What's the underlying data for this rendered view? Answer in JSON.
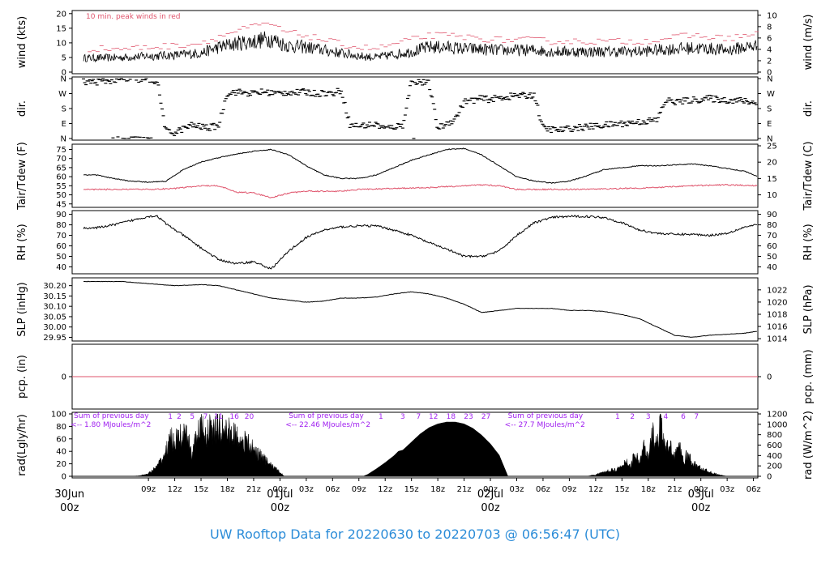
{
  "colors": {
    "red": "#df536b",
    "purple": "#a020f0",
    "title": "#2b8cd8",
    "black": "#000000"
  },
  "title": "UW Rooftop Data for 20220630  to  20220703 @ 06:56:47  (UTC)",
  "chart_data": [
    {
      "type": "line",
      "panel": "wind",
      "ylabel_left": "wind (kts)",
      "ylabel_right": "wind (m/s)",
      "ylim": [
        0,
        20.5
      ],
      "yticks_left": [
        0,
        5,
        10,
        15,
        20
      ],
      "yticks_right": [
        0,
        2,
        4,
        6,
        8,
        10
      ],
      "right_scale": 0.514444,
      "annotation": "10 min. peak winds in red",
      "series": [
        {
          "name": "wind",
          "x_hours": [
            0,
            3,
            6,
            9,
            12,
            14,
            16,
            18,
            20,
            21,
            22,
            24,
            26,
            28,
            30,
            32,
            34,
            36,
            38,
            40,
            42,
            44,
            46,
            48,
            50,
            52,
            54,
            56,
            58,
            60,
            62,
            64,
            66,
            68,
            70,
            72,
            74,
            75.5
          ],
          "values": [
            4.8,
            5,
            5.5,
            5.8,
            6.5,
            8.5,
            9.8,
            10.5,
            11.5,
            10,
            9,
            8.5,
            7.5,
            6.5,
            5.5,
            5,
            6,
            7,
            8.5,
            8.5,
            8,
            7.8,
            7.5,
            7.5,
            7.5,
            7,
            7,
            7,
            7,
            7,
            7,
            7.5,
            8,
            8.2,
            8,
            7.5,
            8.5,
            9
          ]
        },
        {
          "name": "10 min. peak winds",
          "x_hours": [
            0,
            3,
            6,
            9,
            12,
            14,
            16,
            18,
            20,
            21,
            22,
            24,
            26,
            28,
            30,
            32,
            34,
            36,
            38,
            40,
            42,
            44,
            46,
            48,
            50,
            52,
            54,
            56,
            58,
            60,
            62,
            64,
            66,
            68,
            70,
            72,
            74,
            75.5
          ],
          "values": [
            8,
            8,
            8.5,
            9,
            10,
            12,
            14,
            15.5,
            16.5,
            14.5,
            13.5,
            12.5,
            11,
            9.5,
            8.5,
            8,
            9.5,
            11,
            12.5,
            12.5,
            12,
            11.5,
            11,
            11,
            11,
            10.5,
            10.5,
            10.5,
            10.5,
            10.5,
            10.5,
            11,
            12,
            12.5,
            12,
            11.5,
            12.5,
            13
          ]
        }
      ]
    },
    {
      "type": "scatter",
      "panel": "dir",
      "ylabel_left": "dir.",
      "ylabel_right": "dir.",
      "yticks": [
        "N",
        "W",
        "S",
        "E",
        "N"
      ],
      "yticks_deg": [
        360,
        270,
        180,
        90,
        0
      ],
      "ylim": [
        0,
        360
      ],
      "series": [
        {
          "name": "wind direction (deg)",
          "x_hours": [
            0,
            1,
            2,
            3,
            4,
            5,
            6,
            7,
            8,
            9,
            10,
            11,
            12,
            13,
            14,
            15,
            16,
            17,
            18,
            19,
            20,
            21,
            22,
            23,
            24,
            25,
            26,
            27,
            28,
            29,
            30,
            31,
            32,
            33,
            34,
            35,
            36,
            37,
            38,
            39,
            40,
            41,
            42,
            43,
            44,
            45,
            46,
            47,
            48,
            49,
            50,
            51,
            52,
            53,
            54,
            55,
            56,
            57,
            58,
            59,
            60,
            61,
            62,
            63,
            64,
            65,
            66,
            67,
            68,
            69,
            70,
            71,
            72,
            73,
            74,
            75
          ],
          "values": [
            340,
            345,
            350,
            350,
            355,
            355,
            350,
            345,
            40,
            35,
            60,
            80,
            70,
            65,
            80,
            275,
            280,
            275,
            270,
            280,
            275,
            270,
            280,
            275,
            280,
            270,
            275,
            270,
            290,
            80,
            75,
            80,
            85,
            60,
            70,
            80,
            350,
            340,
            330,
            60,
            90,
            120,
            220,
            230,
            240,
            235,
            245,
            250,
            260,
            255,
            265,
            60,
            55,
            50,
            60,
            65,
            70,
            75,
            80,
            85,
            90,
            95,
            100,
            105,
            110,
            230,
            220,
            225,
            230,
            235,
            240,
            235,
            230,
            230,
            225,
            215
          ]
        }
      ]
    },
    {
      "type": "line",
      "panel": "temp",
      "ylabel_left": "Tair/Tdew (F)",
      "ylabel_right": "Tair/Tdew (C)",
      "ylim": [
        44,
        77
      ],
      "yticks_left": [
        45,
        50,
        55,
        60,
        65,
        70,
        75
      ],
      "yticks_right": [
        10,
        15,
        20,
        25
      ],
      "series": [
        {
          "name": "Tair",
          "x_hours": [
            0,
            2,
            4,
            6,
            8,
            10,
            12,
            14,
            16,
            18,
            20,
            22,
            24,
            26,
            28,
            30,
            32,
            34,
            36,
            38,
            40,
            42,
            44,
            46,
            48,
            50,
            52,
            54,
            56,
            58,
            60,
            62,
            64,
            66,
            68,
            70,
            72,
            74,
            75.5
          ],
          "values": [
            61,
            59,
            57.5,
            57,
            57.5,
            64,
            68,
            70.5,
            72.5,
            74,
            75,
            72,
            66,
            61,
            59,
            59,
            61,
            65,
            69,
            72,
            75,
            75.5,
            72,
            66,
            60,
            57.5,
            56.5,
            57.5,
            60.5,
            64,
            65,
            66,
            66,
            66.5,
            67,
            66,
            64.5,
            63,
            60
          ]
        },
        {
          "name": "Tdew",
          "x_hours": [
            0,
            3,
            6,
            9,
            12,
            14,
            16,
            18,
            20,
            22,
            24,
            26,
            28,
            30,
            34,
            38,
            42,
            44,
            46,
            48,
            52,
            56,
            60,
            64,
            68,
            72,
            75.5
          ],
          "values": [
            53,
            53,
            53,
            53.5,
            55,
            55,
            51.5,
            51,
            48.5,
            51,
            52,
            52,
            52,
            53,
            53.5,
            54,
            55,
            55.5,
            55,
            53,
            53,
            53,
            53.5,
            54,
            55,
            55.5,
            55
          ]
        }
      ]
    },
    {
      "type": "line",
      "panel": "rh",
      "ylabel_left": "RH (%)",
      "ylabel_right": "RH (%)",
      "ylim": [
        35,
        92
      ],
      "yticks": [
        40,
        50,
        60,
        70,
        80,
        90
      ],
      "series": [
        {
          "name": "RH",
          "x_hours": [
            0,
            2,
            4,
            6,
            7,
            8,
            10,
            12,
            14,
            16,
            18,
            20,
            22,
            24,
            26,
            28,
            30,
            32,
            34,
            36,
            38,
            40,
            42,
            44,
            46,
            48,
            50,
            52,
            54,
            56,
            58,
            60,
            62,
            64,
            66,
            68,
            70,
            72,
            74,
            75.5
          ],
          "values": [
            77,
            80,
            84,
            88,
            88.5,
            81,
            70,
            58,
            47,
            43,
            45,
            38,
            55,
            68,
            75,
            78,
            79,
            79,
            75,
            70,
            63,
            57,
            50,
            50,
            55,
            70,
            82,
            87,
            88,
            88,
            87,
            82,
            75,
            72,
            71,
            71,
            70,
            72,
            78,
            80
          ]
        }
      ]
    },
    {
      "type": "line",
      "panel": "slp",
      "ylabel_left": "SLP (inHg)",
      "ylabel_right": "SLP (hPa)",
      "ylim": [
        29.94,
        30.23
      ],
      "yticks_left": [
        29.95,
        30.0,
        30.05,
        30.1,
        30.15,
        30.2
      ],
      "yticks_left_labels": [
        "29.95",
        "30.00",
        "30.05",
        "30.10",
        "30.15",
        "30.20"
      ],
      "yticks_right": [
        1014,
        1016,
        1018,
        1020,
        1022
      ],
      "series": [
        {
          "name": "SLP",
          "x_hours": [
            0,
            3,
            6,
            9,
            12,
            14,
            16,
            18,
            20,
            22,
            24,
            26,
            28,
            30,
            32,
            34,
            36,
            38,
            40,
            42,
            44,
            46,
            48,
            50,
            52,
            54,
            56,
            58,
            60,
            62,
            64,
            66,
            68,
            70,
            72,
            74,
            75.5
          ],
          "values": [
            30.22,
            30.22,
            30.21,
            30.2,
            30.205,
            30.2,
            30.18,
            30.16,
            30.14,
            30.13,
            30.12,
            30.125,
            30.14,
            30.14,
            30.145,
            30.16,
            30.17,
            30.16,
            30.14,
            30.11,
            30.07,
            30.08,
            30.09,
            30.09,
            30.09,
            30.08,
            30.08,
            30.075,
            30.06,
            30.04,
            30.0,
            29.96,
            29.95,
            29.96,
            29.965,
            29.97,
            29.98
          ]
        }
      ]
    },
    {
      "type": "line",
      "panel": "pcp",
      "ylabel_left": "pcp. (in)",
      "ylabel_right": "pcp. (mm)",
      "yticks_left": [
        0
      ],
      "yticks_right": [
        0
      ],
      "series": [
        {
          "name": "precipitation",
          "x_hours": [
            0,
            75.5
          ],
          "values": [
            0,
            0
          ]
        }
      ]
    },
    {
      "type": "area",
      "panel": "rad",
      "ylabel_left": "rad(Lgly/hr)",
      "ylabel_right": "rad (W/m^2)",
      "ylim": [
        0,
        100
      ],
      "yticks_left": [
        0,
        20,
        40,
        60,
        80,
        100
      ],
      "yticks_right": [
        0,
        200,
        400,
        600,
        800,
        1000,
        1200
      ],
      "annotations": [
        {
          "text": "Sum of previous day",
          "x_hours": -2.5
        },
        {
          "text": "<-- 1.80 MJoules/m^2",
          "x_hours": -2.5
        },
        {
          "text": "Sum of previous day",
          "x_hours": 22
        },
        {
          "text": "<-- 22.46 MJoules/m^2",
          "x_hours": 22
        },
        {
          "text": "Sum of previous day",
          "x_hours": 47
        },
        {
          "text": "<-- 27.7 MJoules/m^2",
          "x_hours": 47
        }
      ],
      "hourly_labels": [
        {
          "text": "1",
          "x_hours": 8.5
        },
        {
          "text": "2",
          "x_hours": 9.5
        },
        {
          "text": "5",
          "x_hours": 11
        },
        {
          "text": "7",
          "x_hours": 12.5
        },
        {
          "text": "11",
          "x_hours": 14
        },
        {
          "text": "16",
          "x_hours": 15.8
        },
        {
          "text": "20",
          "x_hours": 17.5
        },
        {
          "text": "1",
          "x_hours": 32.5
        },
        {
          "text": "3",
          "x_hours": 35
        },
        {
          "text": "7",
          "x_hours": 36.8
        },
        {
          "text": "12",
          "x_hours": 38.5
        },
        {
          "text": "18",
          "x_hours": 40.5
        },
        {
          "text": "23",
          "x_hours": 42.5
        },
        {
          "text": "27",
          "x_hours": 44.5
        },
        {
          "text": "1",
          "x_hours": 59.5
        },
        {
          "text": "2",
          "x_hours": 61.2
        },
        {
          "text": "3",
          "x_hours": 63
        },
        {
          "text": "4",
          "x_hours": 65
        },
        {
          "text": "6",
          "x_hours": 67
        },
        {
          "text": "7",
          "x_hours": 68.5
        }
      ],
      "series": [
        {
          "name": "day 1 (30 Jun)",
          "x_hours": [
            4,
            5,
            6,
            7,
            8,
            8.5,
            9,
            9.5,
            10,
            10.5,
            11,
            11.5,
            12,
            12.5,
            13,
            13.5,
            14,
            15,
            16,
            17,
            18,
            19,
            20,
            21,
            21.5
          ],
          "values": [
            0,
            1,
            5,
            18,
            45,
            70,
            65,
            72,
            75,
            70,
            40,
            75,
            90,
            78,
            88,
            84,
            90,
            85,
            75,
            65,
            50,
            35,
            20,
            8,
            0
          ]
        },
        {
          "name": "day 2 (01 Jul)",
          "x_hours": [
            30.5,
            31,
            32,
            33,
            34,
            34.5,
            35,
            36,
            37,
            38,
            39,
            40,
            41,
            42,
            43,
            44,
            45,
            46,
            47
          ],
          "values": [
            0,
            3,
            12,
            22,
            33,
            40,
            42,
            55,
            68,
            78,
            84,
            87,
            87,
            84,
            77,
            66,
            52,
            34,
            0
          ]
        },
        {
          "name": "day 3 (02 Jul)",
          "x_hours": [
            56,
            57,
            58,
            59,
            60,
            60.5,
            61,
            61.5,
            62,
            62.5,
            63,
            63.5,
            64,
            64.5,
            65,
            65.5,
            66,
            66.5,
            67,
            67.5,
            68,
            69,
            70,
            71,
            72
          ],
          "values": [
            0,
            3,
            8,
            12,
            16,
            30,
            18,
            45,
            25,
            55,
            30,
            82,
            60,
            100,
            45,
            60,
            40,
            55,
            30,
            40,
            25,
            15,
            8,
            3,
            0
          ]
        }
      ]
    }
  ],
  "x_axis": {
    "range_hours": [
      -2.7,
      75.5
    ],
    "hour_ticks": [
      "09z",
      "12z",
      "15z",
      "18z",
      "21z",
      "00z",
      "03z",
      "06z",
      "09z",
      "12z",
      "15z",
      "18z",
      "21z",
      "00z",
      "03z",
      "06z",
      "09z",
      "12z",
      "15z",
      "18z",
      "21z",
      "00z",
      "03z",
      "06z"
    ],
    "hour_tick_hours": [
      6,
      9,
      12,
      15,
      18,
      21,
      24,
      27,
      30,
      33,
      36,
      39,
      42,
      45,
      48,
      51,
      54,
      57,
      60,
      63,
      66,
      69,
      72,
      75
    ],
    "day_labels": [
      {
        "date": "30Jun",
        "hour": "00z",
        "x_hours": -3
      },
      {
        "date": "01Jul",
        "hour": "00z",
        "x_hours": 21
      },
      {
        "date": "02Jul",
        "hour": "00z",
        "x_hours": 45
      },
      {
        "date": "03Jul",
        "hour": "00z",
        "x_hours": 69
      }
    ]
  }
}
